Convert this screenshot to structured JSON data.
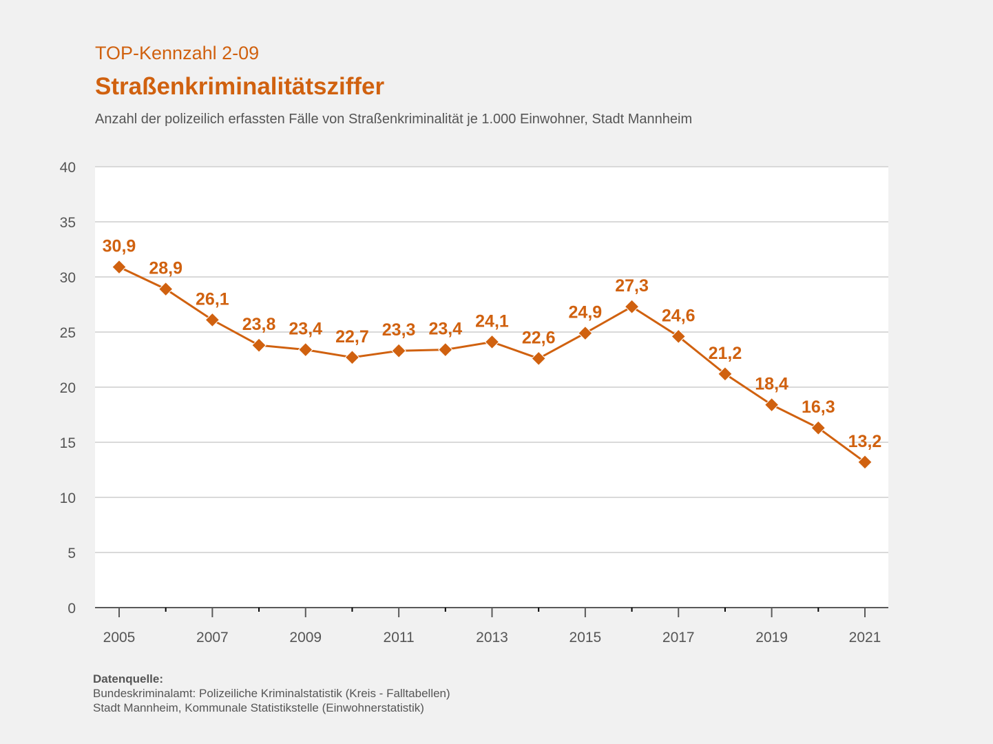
{
  "header": {
    "kennzahl": "TOP-Kennzahl 2-09",
    "title": "Straßenkriminalitätsziffer",
    "subtitle": "Anzahl der polizeilich erfassten Fälle von Straßenkriminalität je 1.000 Einwohner, Stadt Mannheim"
  },
  "colors": {
    "accent": "#D0610F",
    "text": "#555555",
    "grid": "#D9D9D9",
    "axis": "#595959",
    "plot_background": "#FFFFFF",
    "page_background": "#F1F1F1"
  },
  "chart_data": {
    "type": "line",
    "title": "Straßenkriminalitätsziffer",
    "subtitle": "Anzahl der polizeilich erfassten Fälle von Straßenkriminalität je 1.000 Einwohner, Stadt Mannheim",
    "xlabel": "",
    "ylabel": "",
    "x": [
      2005,
      2006,
      2007,
      2008,
      2009,
      2010,
      2011,
      2012,
      2013,
      2014,
      2015,
      2016,
      2017,
      2018,
      2019,
      2020,
      2021
    ],
    "x_tick_labels": [
      "2005",
      "2007",
      "2009",
      "2011",
      "2013",
      "2015",
      "2017",
      "2019",
      "2021"
    ],
    "y_ticks": [
      0,
      5,
      10,
      15,
      20,
      25,
      30,
      35,
      40
    ],
    "ylim": [
      0,
      40
    ],
    "grid": true,
    "legend": "none",
    "marker": "diamond",
    "series": [
      {
        "name": "Straßenkriminalitätsziffer",
        "values": [
          30.9,
          28.9,
          26.1,
          23.8,
          23.4,
          22.7,
          23.3,
          23.4,
          24.1,
          22.6,
          24.9,
          27.3,
          24.6,
          21.2,
          18.4,
          16.3,
          13.2
        ],
        "labels": [
          "30,9",
          "28,9",
          "26,1",
          "23,8",
          "23,4",
          "22,7",
          "23,3",
          "23,4",
          "24,1",
          "22,6",
          "24,9",
          "27,3",
          "24,6",
          "21,2",
          "18,4",
          "16,3",
          "13,2"
        ]
      }
    ]
  },
  "source": {
    "heading": "Datenquelle:",
    "lines": [
      "Bundeskriminalamt: Polizeiliche Kriminalstatistik (Kreis - Falltabellen)",
      "Stadt Mannheim, Kommunale Statistikstelle (Einwohnerstatistik)"
    ]
  }
}
